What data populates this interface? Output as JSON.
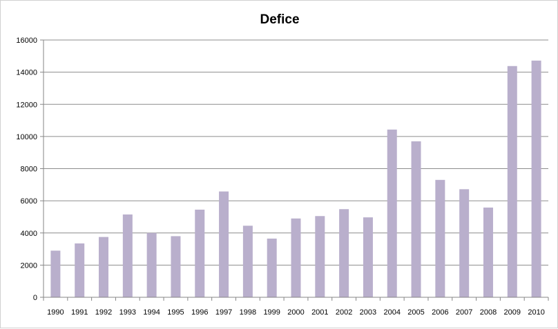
{
  "chart_data": {
    "type": "bar",
    "title": "Defice",
    "xlabel": "",
    "ylabel": "",
    "categories": [
      "1990",
      "1991",
      "1992",
      "1993",
      "1994",
      "1995",
      "1996",
      "1997",
      "1998",
      "1999",
      "2000",
      "2001",
      "2002",
      "2003",
      "2004",
      "2005",
      "2006",
      "2007",
      "2008",
      "2009",
      "2010"
    ],
    "values": [
      2900,
      3350,
      3750,
      5150,
      4000,
      3800,
      5450,
      6580,
      4450,
      3650,
      4900,
      5050,
      5480,
      4970,
      10430,
      9700,
      7300,
      6720,
      5580,
      14380,
      14720
    ],
    "ylim": [
      0,
      16000
    ],
    "yticks": [
      "0",
      "2000",
      "4000",
      "6000",
      "8000",
      "10000",
      "12000",
      "14000",
      "16000"
    ],
    "grid": true,
    "legend": "none",
    "bar_color": "#b9afcc"
  }
}
